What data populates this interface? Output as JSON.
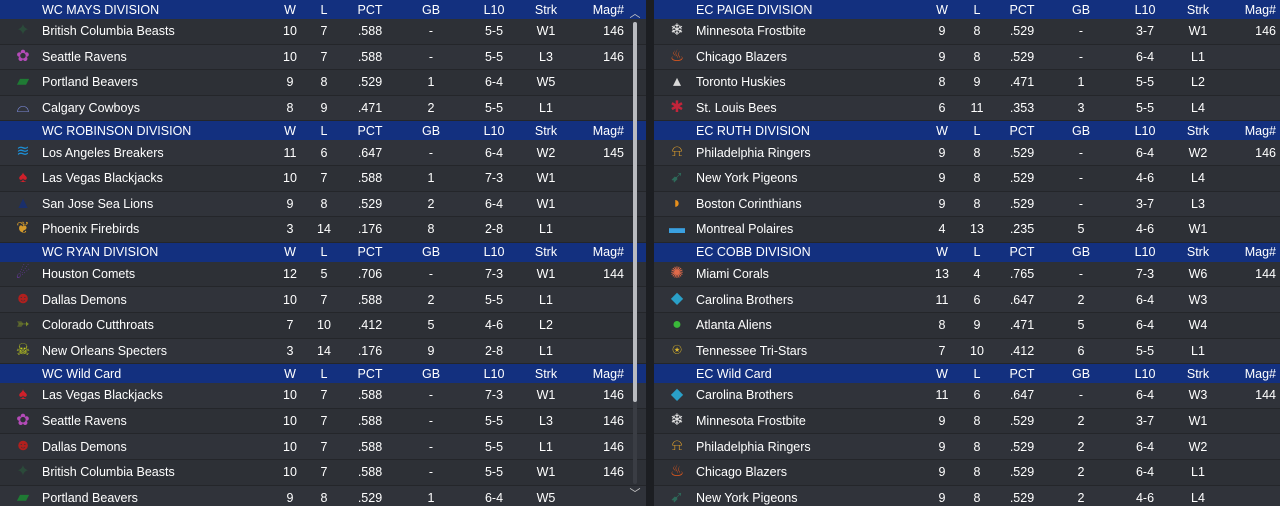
{
  "colors": {
    "header_bg": "#13307f",
    "row_bg": "#2d3036",
    "text": "#ffffff"
  },
  "headers": {
    "w": "W",
    "l": "L",
    "pct": "PCT",
    "gb": "GB",
    "l10": "L10",
    "strk": "Strk",
    "mag": "Mag#"
  },
  "west": {
    "mays": {
      "title": "WC MAYS DIVISION",
      "teams": [
        {
          "icon": "beast-icon",
          "glyph": "✦",
          "color": "#2b4a3a",
          "name": "British Columbia Beasts",
          "w": "10",
          "l": "7",
          "pct": ".588",
          "gb": "-",
          "l10": "5-5",
          "strk": "W1",
          "mag": "146"
        },
        {
          "icon": "raven-icon",
          "glyph": "✿",
          "color": "#b44bb8",
          "name": "Seattle Ravens",
          "w": "10",
          "l": "7",
          "pct": ".588",
          "gb": "-",
          "l10": "5-5",
          "strk": "L3",
          "mag": "146"
        },
        {
          "icon": "beaver-icon",
          "glyph": "▰",
          "color": "#1f7a34",
          "name": "Portland Beavers",
          "w": "9",
          "l": "8",
          "pct": ".529",
          "gb": "1",
          "l10": "6-4",
          "strk": "W5",
          "mag": ""
        },
        {
          "icon": "cowboy-hat-icon",
          "glyph": "⌓",
          "color": "#7b8ad8",
          "name": "Calgary Cowboys",
          "w": "8",
          "l": "9",
          "pct": ".471",
          "gb": "2",
          "l10": "5-5",
          "strk": "L1",
          "mag": ""
        }
      ]
    },
    "robinson": {
      "title": "WC ROBINSON DIVISION",
      "teams": [
        {
          "icon": "wave-icon",
          "glyph": "≋",
          "color": "#1d8fd6",
          "name": "Los Angeles Breakers",
          "w": "11",
          "l": "6",
          "pct": ".647",
          "gb": "-",
          "l10": "6-4",
          "strk": "W2",
          "mag": "145"
        },
        {
          "icon": "spade-icon",
          "glyph": "♠",
          "color": "#d0202a",
          "name": "Las Vegas Blackjacks",
          "w": "10",
          "l": "7",
          "pct": ".588",
          "gb": "1",
          "l10": "7-3",
          "strk": "W1",
          "mag": ""
        },
        {
          "icon": "sea-lion-icon",
          "glyph": "▲",
          "color": "#1a2f6b",
          "name": "San Jose Sea Lions",
          "w": "9",
          "l": "8",
          "pct": ".529",
          "gb": "2",
          "l10": "6-4",
          "strk": "W1",
          "mag": ""
        },
        {
          "icon": "firebird-icon",
          "glyph": "❦",
          "color": "#d49a2b",
          "name": "Phoenix Firebirds",
          "w": "3",
          "l": "14",
          "pct": ".176",
          "gb": "8",
          "l10": "2-8",
          "strk": "L1",
          "mag": ""
        }
      ]
    },
    "ryan": {
      "title": "WC RYAN DIVISION",
      "teams": [
        {
          "icon": "comet-icon",
          "glyph": "☄",
          "color": "#6a3aa0",
          "name": "Houston Comets",
          "w": "12",
          "l": "5",
          "pct": ".706",
          "gb": "-",
          "l10": "7-3",
          "strk": "W1",
          "mag": "144"
        },
        {
          "icon": "demon-icon",
          "glyph": "☻",
          "color": "#b0201e",
          "name": "Dallas Demons",
          "w": "10",
          "l": "7",
          "pct": ".588",
          "gb": "2",
          "l10": "5-5",
          "strk": "L1",
          "mag": ""
        },
        {
          "icon": "fish-icon",
          "glyph": "➳",
          "color": "#7a8a2a",
          "name": "Colorado Cutthroats",
          "w": "7",
          "l": "10",
          "pct": ".412",
          "gb": "5",
          "l10": "4-6",
          "strk": "L2",
          "mag": ""
        },
        {
          "icon": "skull-icon",
          "glyph": "☠",
          "color": "#c6d21e",
          "name": "New Orleans Specters",
          "w": "3",
          "l": "14",
          "pct": ".176",
          "gb": "9",
          "l10": "2-8",
          "strk": "L1",
          "mag": ""
        }
      ]
    },
    "wildcard": {
      "title": "WC  Wild Card",
      "teams": [
        {
          "icon": "spade-icon",
          "glyph": "♠",
          "color": "#d0202a",
          "name": "Las Vegas Blackjacks",
          "w": "10",
          "l": "7",
          "pct": ".588",
          "gb": "-",
          "l10": "7-3",
          "strk": "W1",
          "mag": "146"
        },
        {
          "icon": "raven-icon",
          "glyph": "✿",
          "color": "#b44bb8",
          "name": "Seattle Ravens",
          "w": "10",
          "l": "7",
          "pct": ".588",
          "gb": "-",
          "l10": "5-5",
          "strk": "L3",
          "mag": "146"
        },
        {
          "icon": "demon-icon",
          "glyph": "☻",
          "color": "#b0201e",
          "name": "Dallas Demons",
          "w": "10",
          "l": "7",
          "pct": ".588",
          "gb": "-",
          "l10": "5-5",
          "strk": "L1",
          "mag": "146"
        },
        {
          "icon": "beast-icon",
          "glyph": "✦",
          "color": "#2b4a3a",
          "name": "British Columbia Beasts",
          "w": "10",
          "l": "7",
          "pct": ".588",
          "gb": "-",
          "l10": "5-5",
          "strk": "W1",
          "mag": "146"
        },
        {
          "icon": "beaver-icon",
          "glyph": "▰",
          "color": "#1f7a34",
          "name": "Portland Beavers",
          "w": "9",
          "l": "8",
          "pct": ".529",
          "gb": "1",
          "l10": "6-4",
          "strk": "W5",
          "mag": ""
        }
      ]
    }
  },
  "east": {
    "paige": {
      "title": "EC PAIGE DIVISION",
      "teams": [
        {
          "icon": "snowflake-icon",
          "glyph": "❄",
          "color": "#e8e8e8",
          "name": "Minnesota Frostbite",
          "w": "9",
          "l": "8",
          "pct": ".529",
          "gb": "-",
          "l10": "3-7",
          "strk": "W1",
          "mag": "146"
        },
        {
          "icon": "flame-icon",
          "glyph": "♨",
          "color": "#e85a1c",
          "name": "Chicago Blazers",
          "w": "9",
          "l": "8",
          "pct": ".529",
          "gb": "-",
          "l10": "6-4",
          "strk": "L1",
          "mag": ""
        },
        {
          "icon": "husky-icon",
          "glyph": "▴",
          "color": "#d8d8d8",
          "name": "Toronto Huskies",
          "w": "8",
          "l": "9",
          "pct": ".471",
          "gb": "1",
          "l10": "5-5",
          "strk": "L2",
          "mag": ""
        },
        {
          "icon": "bee-icon",
          "glyph": "✱",
          "color": "#c2243a",
          "name": "St. Louis Bees",
          "w": "6",
          "l": "11",
          "pct": ".353",
          "gb": "3",
          "l10": "5-5",
          "strk": "L4",
          "mag": ""
        }
      ]
    },
    "ruth": {
      "title": "EC RUTH DIVISION",
      "teams": [
        {
          "icon": "bell-icon",
          "glyph": "⍾",
          "color": "#d69a2c",
          "name": "Philadelphia Ringers",
          "w": "9",
          "l": "8",
          "pct": ".529",
          "gb": "-",
          "l10": "6-4",
          "strk": "W2",
          "mag": "146"
        },
        {
          "icon": "pigeon-icon",
          "glyph": "➹",
          "color": "#2e6a5a",
          "name": "New York Pigeons",
          "w": "9",
          "l": "8",
          "pct": ".529",
          "gb": "-",
          "l10": "4-6",
          "strk": "L4",
          "mag": ""
        },
        {
          "icon": "helmet-icon",
          "glyph": "◗",
          "color": "#e8901c",
          "name": "Boston Corinthians",
          "w": "9",
          "l": "8",
          "pct": ".529",
          "gb": "-",
          "l10": "3-7",
          "strk": "L3",
          "mag": ""
        },
        {
          "icon": "bear-icon",
          "glyph": "▬",
          "color": "#3aa0e0",
          "name": "Montreal Polaires",
          "w": "4",
          "l": "13",
          "pct": ".235",
          "gb": "5",
          "l10": "4-6",
          "strk": "W1",
          "mag": ""
        }
      ]
    },
    "cobb": {
      "title": "EC COBB DIVISION",
      "teams": [
        {
          "icon": "coral-icon",
          "glyph": "✺",
          "color": "#e06a4a",
          "name": "Miami Corals",
          "w": "13",
          "l": "4",
          "pct": ".765",
          "gb": "-",
          "l10": "7-3",
          "strk": "W6",
          "mag": "144"
        },
        {
          "icon": "diamond-icon",
          "glyph": "◆",
          "color": "#2aa0c8",
          "name": "Carolina Brothers",
          "w": "11",
          "l": "6",
          "pct": ".647",
          "gb": "2",
          "l10": "6-4",
          "strk": "W3",
          "mag": ""
        },
        {
          "icon": "alien-icon",
          "glyph": "●",
          "color": "#3ab83a",
          "name": "Atlanta Aliens",
          "w": "8",
          "l": "9",
          "pct": ".471",
          "gb": "5",
          "l10": "6-4",
          "strk": "W4",
          "mag": ""
        },
        {
          "icon": "tri-star-icon",
          "glyph": "⍟",
          "color": "#e0b82a",
          "name": "Tennessee Tri-Stars",
          "w": "7",
          "l": "10",
          "pct": ".412",
          "gb": "6",
          "l10": "5-5",
          "strk": "L1",
          "mag": ""
        }
      ]
    },
    "wildcard": {
      "title": "EC  Wild Card",
      "teams": [
        {
          "icon": "diamond-icon",
          "glyph": "◆",
          "color": "#2aa0c8",
          "name": "Carolina Brothers",
          "w": "11",
          "l": "6",
          "pct": ".647",
          "gb": "-",
          "l10": "6-4",
          "strk": "W3",
          "mag": "144"
        },
        {
          "icon": "snowflake-icon",
          "glyph": "❄",
          "color": "#e8e8e8",
          "name": "Minnesota Frostbite",
          "w": "9",
          "l": "8",
          "pct": ".529",
          "gb": "2",
          "l10": "3-7",
          "strk": "W1",
          "mag": ""
        },
        {
          "icon": "bell-icon",
          "glyph": "⍾",
          "color": "#d69a2c",
          "name": "Philadelphia Ringers",
          "w": "9",
          "l": "8",
          "pct": ".529",
          "gb": "2",
          "l10": "6-4",
          "strk": "W2",
          "mag": ""
        },
        {
          "icon": "flame-icon",
          "glyph": "♨",
          "color": "#e85a1c",
          "name": "Chicago Blazers",
          "w": "9",
          "l": "8",
          "pct": ".529",
          "gb": "2",
          "l10": "6-4",
          "strk": "L1",
          "mag": ""
        },
        {
          "icon": "pigeon-icon",
          "glyph": "➹",
          "color": "#2e6a5a",
          "name": "New York Pigeons",
          "w": "9",
          "l": "8",
          "pct": ".529",
          "gb": "2",
          "l10": "4-6",
          "strk": "L4",
          "mag": ""
        }
      ]
    }
  }
}
